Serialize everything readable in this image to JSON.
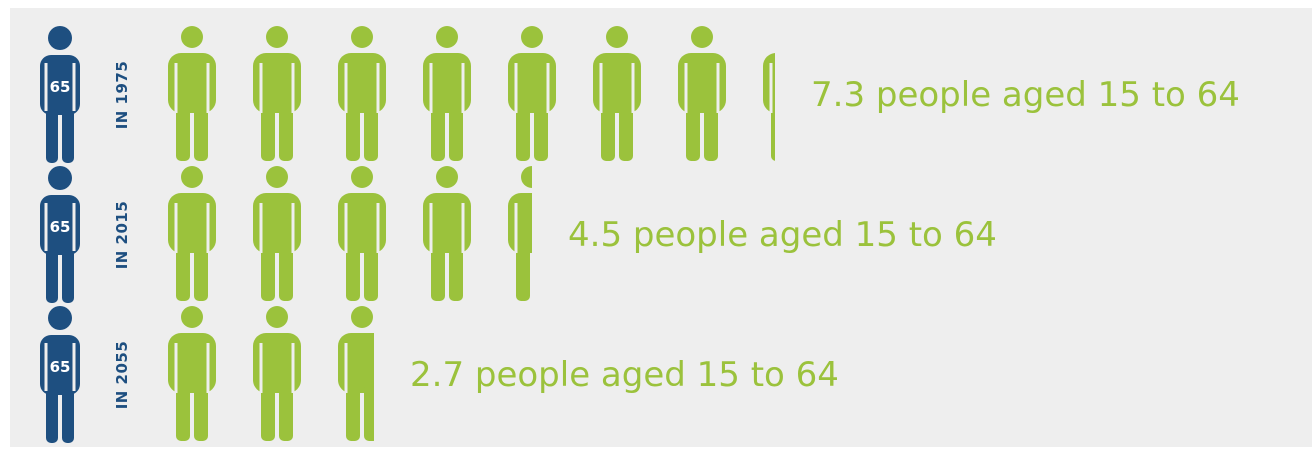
{
  "colors": {
    "worker": "#9bc23c",
    "senior": "#1e4f80",
    "background": "#eeeeee"
  },
  "icons": {
    "senior": "person-icon",
    "worker": "person-icon"
  },
  "rows": [
    {
      "senior_label": "65",
      "year_label": "IN 1975",
      "text": "7.3 people aged 15 to 64"
    },
    {
      "senior_label": "65",
      "year_label": "IN 2015",
      "text": "4.5 people aged 15 to 64"
    },
    {
      "senior_label": "65",
      "year_label": "IN 2055",
      "text": "2.7 people aged 15 to 64"
    }
  ],
  "chart_data": {
    "type": "bar",
    "categories": [
      "IN 1975",
      "IN 2015",
      "IN 2055"
    ],
    "values": [
      7.3,
      4.5,
      2.7
    ]
  }
}
